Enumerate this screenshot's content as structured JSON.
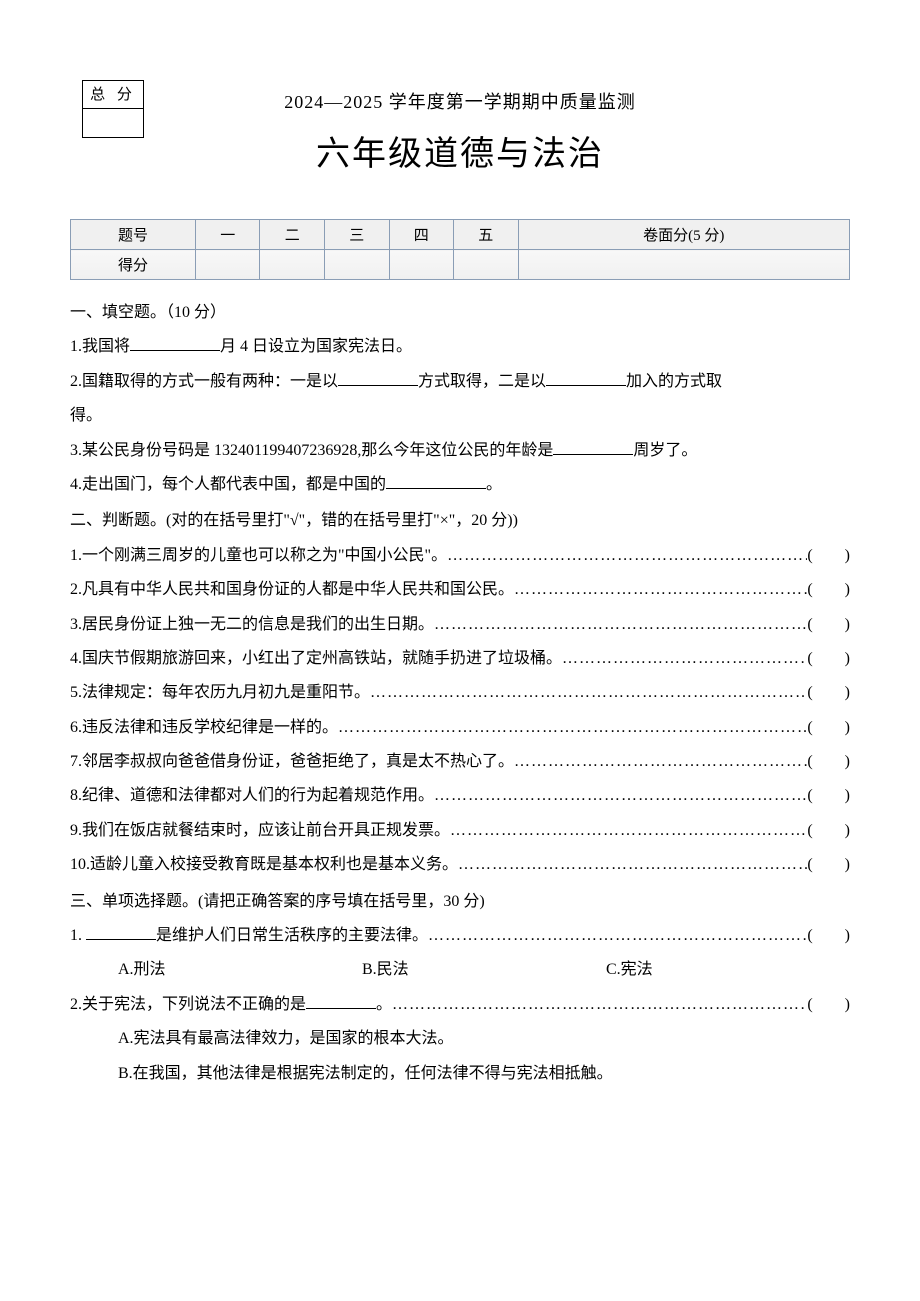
{
  "score_box": {
    "label": "总 分"
  },
  "header": {
    "line1": "2024—2025 学年度第一学期期中质量监测",
    "line2": "六年级道德与法治"
  },
  "score_table": {
    "row1": [
      "题号",
      "一",
      "二",
      "三",
      "四",
      "五",
      "卷面分(5 分)"
    ],
    "row2": [
      "得分",
      "",
      "",
      "",
      "",
      "",
      ""
    ]
  },
  "section1": {
    "title": "一、填空题。（10 分）",
    "q1_pre": "1.我国将",
    "q1_post": "月 4 日设立为国家宪法日。",
    "q2_pre": "2.国籍取得的方式一般有两种：一是以",
    "q2_mid": "方式取得，二是以",
    "q2_post": "加入的方式取",
    "q2_line2": "得。",
    "q3_pre": "3.某公民身份号码是 132401199407236928,那么今年这位公民的年龄是",
    "q3_post": "周岁了。",
    "q4_pre": "4.走出国门，每个人都代表中国，都是中国的",
    "q4_post": "。"
  },
  "section2": {
    "title": "二、判断题。(对的在括号里打\"√\"，错的在括号里打\"×\"，20 分))",
    "items": [
      "1.一个刚满三周岁的儿童也可以称之为\"中国小公民\"。",
      "2.凡具有中华人民共和国身份证的人都是中华人民共和国公民。",
      "3.居民身份证上独一无二的信息是我们的出生日期。",
      "4.国庆节假期旅游回来，小红出了定州高铁站，就随手扔进了垃圾桶。",
      "5.法律规定：每年农历九月初九是重阳节。",
      "6.违反法律和违反学校纪律是一样的。",
      "7.邻居李叔叔向爸爸借身份证，爸爸拒绝了，真是太不热心了。",
      "8.纪律、道德和法律都对人们的行为起着规范作用。",
      "9.我们在饭店就餐结束时，应该让前台开具正规发票。",
      "10.适龄儿童入校接受教育既是基本权利也是基本义务。"
    ]
  },
  "section3": {
    "title": "三、单项选择题。(请把正确答案的序号填在括号里，30 分)",
    "q1_pre": "1. ",
    "q1_post": "是维护人们日常生活秩序的主要法律。",
    "q1_opts": [
      "A.刑法",
      "B.民法",
      "C.宪法"
    ],
    "q2_pre": "2.关于宪法，下列说法不正确的是",
    "q2_post": "。",
    "q2_optA": "A.宪法具有最高法律效力，是国家的根本大法。",
    "q2_optB": "B.在我国，其他法律是根据宪法制定的，任何法律不得与宪法相抵触。"
  },
  "paren": "(　　)",
  "dots": "………………………………………………………………………………"
}
